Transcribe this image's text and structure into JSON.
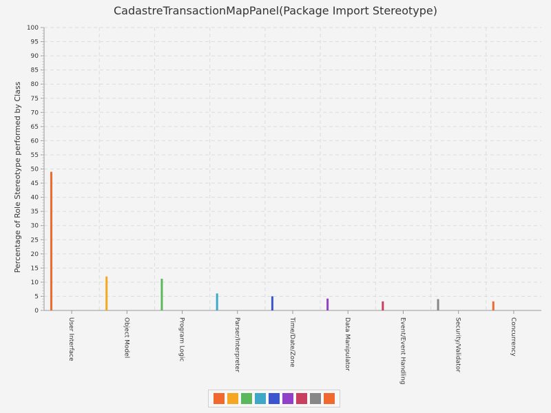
{
  "chart_data": {
    "type": "bar",
    "title": "CadastreTransactionMapPanel(Package Import Stereotype)",
    "xlabel": "",
    "ylabel": "Percentage of Role Stereotype performed by Class",
    "ylim": [
      0,
      100
    ],
    "ytick_step": 5,
    "grid": true,
    "legend": "bottom-center",
    "categories": [
      "User Interface",
      "Object Model",
      "Program Logic",
      "Parser/Interpreter",
      "Time/Date/Zone",
      "Data Manipulator",
      "Event/Event Handling",
      "Security/Validator",
      "Concurrency"
    ],
    "values": [
      49,
      12,
      11.2,
      6,
      5,
      4.2,
      3.2,
      4,
      3.2
    ],
    "colors": [
      "#f06a30",
      "#f5a623",
      "#5cb85c",
      "#3fa8c8",
      "#3b55cf",
      "#9141c9",
      "#c8405e",
      "#878787",
      "#f06a30"
    ]
  }
}
